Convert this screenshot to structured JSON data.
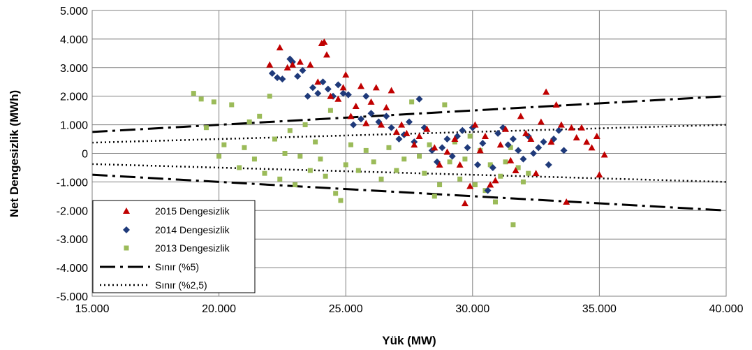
{
  "chart_data": {
    "type": "scatter",
    "xlabel": "Yük (MW)",
    "ylabel": "Net Dengesizlik (MWh)",
    "xlim": [
      15000,
      40000
    ],
    "ylim": [
      -5000,
      5000
    ],
    "x_ticks": [
      "15.000",
      "20.000",
      "25.000",
      "30.000",
      "35.000",
      "40.000"
    ],
    "y_ticks": [
      "5.000",
      "4.000",
      "3.000",
      "2.000",
      "1.000",
      "0",
      "-1.000",
      "-2.000",
      "-3.000",
      "-4.000",
      "-5.000"
    ],
    "grid": true,
    "legend_position": "bottom-left",
    "colors": {
      "s2015": "#c00000",
      "s2014": "#1f3a7a",
      "s2013": "#9bbb59",
      "lines": "#000000",
      "grid": "#808080"
    },
    "series": [
      {
        "name": "2015 Dengesizlik",
        "marker": "triangle",
        "points": [
          [
            22000,
            3100
          ],
          [
            22400,
            3700
          ],
          [
            22700,
            3000
          ],
          [
            22900,
            3100
          ],
          [
            23200,
            3200
          ],
          [
            23600,
            3100
          ],
          [
            23900,
            2500
          ],
          [
            24050,
            3850
          ],
          [
            24150,
            3900
          ],
          [
            24250,
            3450
          ],
          [
            24400,
            2000
          ],
          [
            24700,
            1900
          ],
          [
            24900,
            2300
          ],
          [
            25000,
            2750
          ],
          [
            25200,
            1300
          ],
          [
            25400,
            1650
          ],
          [
            25600,
            2350
          ],
          [
            25800,
            1050
          ],
          [
            26000,
            1800
          ],
          [
            26200,
            2300
          ],
          [
            26400,
            1000
          ],
          [
            26600,
            1600
          ],
          [
            26800,
            2200
          ],
          [
            27000,
            750
          ],
          [
            27200,
            1000
          ],
          [
            27400,
            700
          ],
          [
            27700,
            300
          ],
          [
            27900,
            600
          ],
          [
            28200,
            850
          ],
          [
            28500,
            200
          ],
          [
            28700,
            -400
          ],
          [
            29000,
            50
          ],
          [
            29300,
            500
          ],
          [
            29500,
            -400
          ],
          [
            29700,
            -1750
          ],
          [
            29900,
            -1150
          ],
          [
            30100,
            1000
          ],
          [
            30300,
            100
          ],
          [
            30500,
            600
          ],
          [
            30700,
            -1100
          ],
          [
            30900,
            -950
          ],
          [
            31100,
            300
          ],
          [
            31300,
            850
          ],
          [
            31500,
            -250
          ],
          [
            31700,
            -600
          ],
          [
            31900,
            1300
          ],
          [
            32100,
            700
          ],
          [
            32300,
            500
          ],
          [
            32500,
            -700
          ],
          [
            32700,
            1100
          ],
          [
            32900,
            2150
          ],
          [
            33100,
            400
          ],
          [
            33300,
            1700
          ],
          [
            33500,
            1000
          ],
          [
            33700,
            -1700
          ],
          [
            33900,
            900
          ],
          [
            34100,
            550
          ],
          [
            34300,
            900
          ],
          [
            34500,
            400
          ],
          [
            34700,
            200
          ],
          [
            34900,
            600
          ],
          [
            35000,
            -750
          ],
          [
            35200,
            -50
          ]
        ]
      },
      {
        "name": "2014 Dengesizlik",
        "marker": "diamond",
        "points": [
          [
            22100,
            2800
          ],
          [
            22300,
            2650
          ],
          [
            22500,
            2600
          ],
          [
            22800,
            3300
          ],
          [
            22900,
            3200
          ],
          [
            23100,
            2700
          ],
          [
            23300,
            2900
          ],
          [
            23500,
            2000
          ],
          [
            23700,
            2300
          ],
          [
            23900,
            2100
          ],
          [
            24100,
            2500
          ],
          [
            24300,
            2250
          ],
          [
            24500,
            2000
          ],
          [
            24700,
            2400
          ],
          [
            24900,
            2100
          ],
          [
            25100,
            2050
          ],
          [
            25300,
            1000
          ],
          [
            25600,
            1200
          ],
          [
            25800,
            2000
          ],
          [
            26000,
            1400
          ],
          [
            26300,
            1100
          ],
          [
            26600,
            1300
          ],
          [
            26800,
            900
          ],
          [
            27100,
            500
          ],
          [
            27300,
            650
          ],
          [
            27500,
            1100
          ],
          [
            27700,
            400
          ],
          [
            27900,
            1900
          ],
          [
            28100,
            900
          ],
          [
            28400,
            100
          ],
          [
            28600,
            -300
          ],
          [
            28800,
            200
          ],
          [
            29000,
            500
          ],
          [
            29200,
            -100
          ],
          [
            29400,
            600
          ],
          [
            29600,
            800
          ],
          [
            29800,
            200
          ],
          [
            30000,
            900
          ],
          [
            30200,
            -400
          ],
          [
            30400,
            350
          ],
          [
            30600,
            -1300
          ],
          [
            30800,
            -500
          ],
          [
            31000,
            700
          ],
          [
            31200,
            900
          ],
          [
            31400,
            300
          ],
          [
            31600,
            500
          ],
          [
            31800,
            100
          ],
          [
            32000,
            -200
          ],
          [
            32200,
            600
          ],
          [
            32400,
            0
          ],
          [
            32600,
            200
          ],
          [
            32800,
            400
          ],
          [
            33000,
            -400
          ],
          [
            33200,
            500
          ],
          [
            33400,
            800
          ],
          [
            33600,
            100
          ]
        ]
      },
      {
        "name": "2013 Dengesizlik",
        "marker": "square",
        "points": [
          [
            19000,
            2100
          ],
          [
            19300,
            1900
          ],
          [
            19500,
            900
          ],
          [
            19800,
            1800
          ],
          [
            20000,
            -100
          ],
          [
            20200,
            300
          ],
          [
            20500,
            1700
          ],
          [
            20800,
            -500
          ],
          [
            21000,
            200
          ],
          [
            21200,
            1100
          ],
          [
            21400,
            -200
          ],
          [
            21600,
            1300
          ],
          [
            21800,
            -700
          ],
          [
            22000,
            2000
          ],
          [
            22200,
            500
          ],
          [
            22400,
            -900
          ],
          [
            22600,
            0
          ],
          [
            22800,
            800
          ],
          [
            23000,
            -1100
          ],
          [
            23200,
            -100
          ],
          [
            23400,
            1000
          ],
          [
            23600,
            -600
          ],
          [
            23800,
            400
          ],
          [
            24000,
            -200
          ],
          [
            24200,
            -800
          ],
          [
            24400,
            1500
          ],
          [
            24600,
            -1400
          ],
          [
            24800,
            -1650
          ],
          [
            25000,
            -400
          ],
          [
            25200,
            300
          ],
          [
            25500,
            -600
          ],
          [
            25800,
            100
          ],
          [
            26100,
            -300
          ],
          [
            26400,
            -900
          ],
          [
            26700,
            200
          ],
          [
            27000,
            -600
          ],
          [
            27300,
            -200
          ],
          [
            27600,
            1800
          ],
          [
            27900,
            -100
          ],
          [
            28100,
            -700
          ],
          [
            28300,
            300
          ],
          [
            28500,
            -1500
          ],
          [
            28700,
            -1100
          ],
          [
            28900,
            1700
          ],
          [
            29100,
            -300
          ],
          [
            29300,
            400
          ],
          [
            29500,
            -900
          ],
          [
            29700,
            -200
          ],
          [
            29900,
            600
          ],
          [
            30100,
            -1100
          ],
          [
            30300,
            100
          ],
          [
            30500,
            -1300
          ],
          [
            30700,
            -400
          ],
          [
            30900,
            -1700
          ],
          [
            31100,
            -800
          ],
          [
            31300,
            -300
          ],
          [
            31500,
            200
          ],
          [
            31600,
            -2500
          ],
          [
            31800,
            -500
          ],
          [
            32000,
            -1000
          ],
          [
            32200,
            -700
          ]
        ]
      },
      {
        "name": "Sınır (%5)",
        "line_style": "dash-dot",
        "upper": [
          [
            15000,
            750
          ],
          [
            40000,
            2000
          ]
        ],
        "lower": [
          [
            15000,
            -750
          ],
          [
            40000,
            -2000
          ]
        ]
      },
      {
        "name": "Sınır (%2,5)",
        "line_style": "dotted",
        "upper": [
          [
            15000,
            375
          ],
          [
            40000,
            1000
          ]
        ],
        "lower": [
          [
            15000,
            -375
          ],
          [
            40000,
            -1000
          ]
        ]
      }
    ]
  }
}
